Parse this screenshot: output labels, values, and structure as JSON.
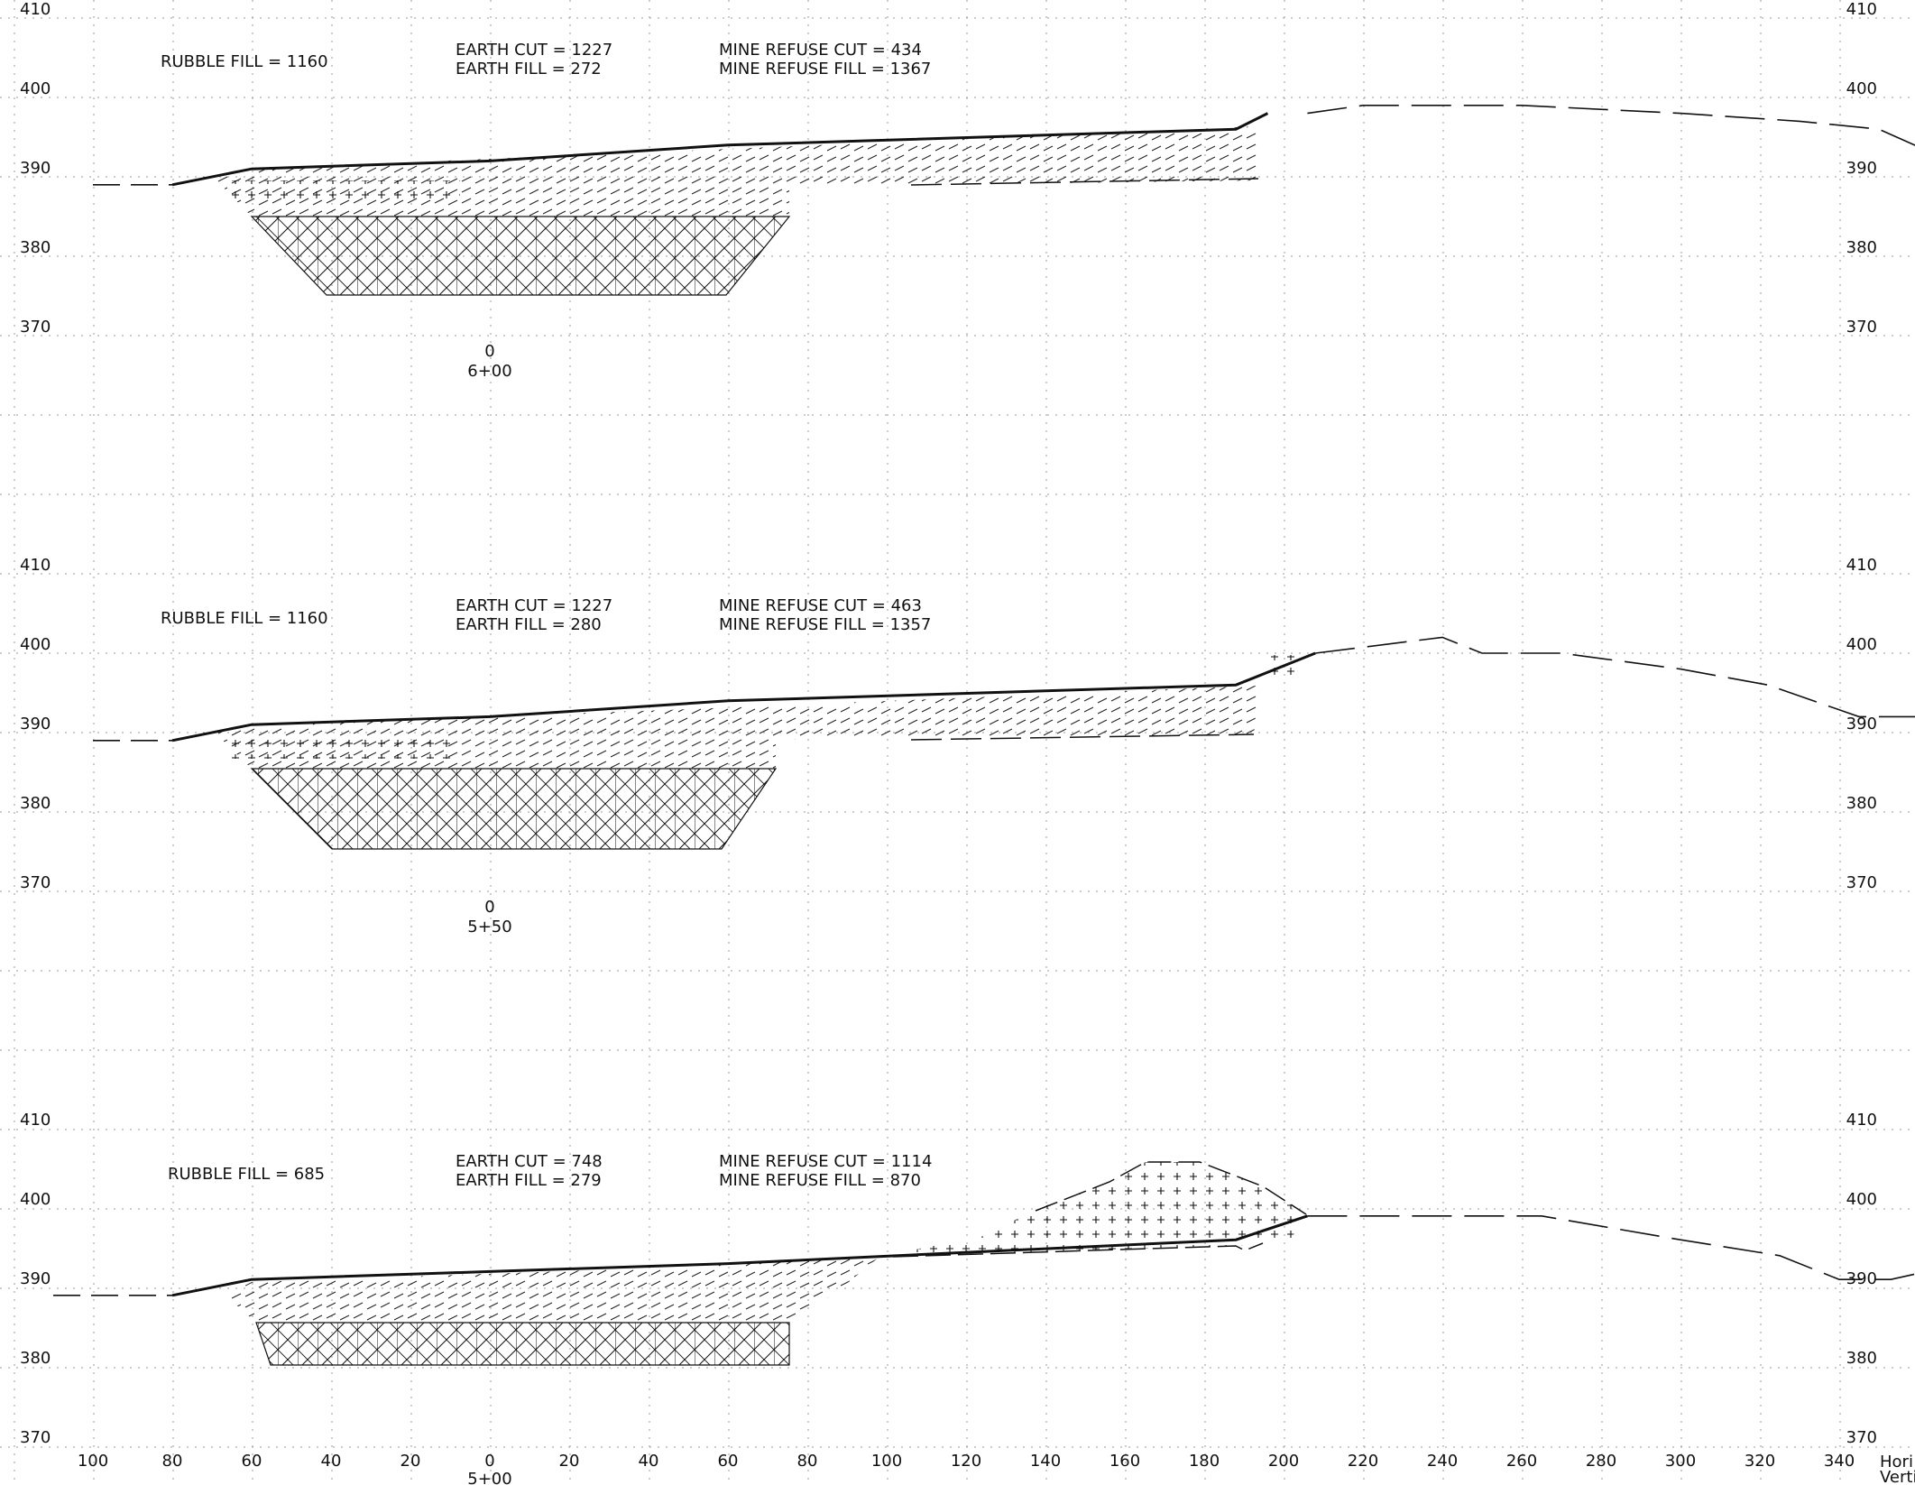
{
  "colors": {
    "ink": "#111111",
    "grid": "#9a9a9a",
    "background": "#ffffff"
  },
  "elevation_ticks": [
    "410",
    "400",
    "390",
    "380",
    "370"
  ],
  "offset_ticks": [
    "100",
    "80",
    "60",
    "40",
    "20",
    "0",
    "20",
    "40",
    "60",
    "80",
    "100",
    "120",
    "140",
    "160",
    "180",
    "200",
    "220",
    "240",
    "260",
    "280",
    "300",
    "320",
    "340"
  ],
  "scale_note": {
    "line1": "Hori",
    "line2": "Verti"
  },
  "sections": [
    {
      "station": "6+00",
      "centerline": "0",
      "rubble_fill": "RUBBLE FILL = 1160",
      "earth_cut": "EARTH CUT = 1227",
      "earth_fill": "EARTH FILL = 272",
      "mine_refuse_cut": "MINE REFUSE CUT = 434",
      "mine_refuse_fill": "MINE REFUSE FILL = 1367",
      "existing_ground": [
        [
          -100,
          389
        ],
        [
          -80,
          389
        ]
      ],
      "existing_ground_right": [
        [
          206,
          398
        ],
        [
          220,
          399
        ],
        [
          260,
          399
        ],
        [
          300,
          398
        ],
        [
          330,
          397
        ],
        [
          350,
          396
        ],
        [
          368,
          392
        ]
      ],
      "proposed_surface": [
        [
          -80,
          389
        ],
        [
          -60,
          391
        ],
        [
          0,
          392
        ],
        [
          60,
          394
        ],
        [
          188,
          396
        ],
        [
          196,
          398
        ]
      ]
    },
    {
      "station": "5+50",
      "centerline": "0",
      "rubble_fill": "RUBBLE FILL = 1160",
      "earth_cut": "EARTH CUT = 1227",
      "earth_fill": "EARTH FILL = 280",
      "mine_refuse_cut": "MINE REFUSE CUT = 463",
      "mine_refuse_fill": "MINE REFUSE FILL = 1357",
      "existing_ground": [
        [
          -100,
          389
        ],
        [
          -80,
          389
        ]
      ],
      "existing_ground_right": [
        [
          208,
          400
        ],
        [
          240,
          402
        ],
        [
          250,
          400
        ],
        [
          270,
          400
        ],
        [
          300,
          398
        ],
        [
          322,
          396
        ],
        [
          345,
          392
        ],
        [
          362,
          392
        ],
        [
          370,
          393
        ]
      ],
      "proposed_surface": [
        [
          -80,
          389
        ],
        [
          -60,
          391
        ],
        [
          0,
          392
        ],
        [
          60,
          394
        ],
        [
          188,
          396
        ],
        [
          208,
          400
        ]
      ]
    },
    {
      "station": "5+00",
      "centerline": "0",
      "rubble_fill": "RUBBLE FILL = 685",
      "earth_cut": "EARTH CUT = 748",
      "earth_fill": "EARTH FILL = 279",
      "mine_refuse_cut": "MINE REFUSE CUT = 1114",
      "mine_refuse_fill": "MINE REFUSE FILL = 870",
      "existing_ground": [
        [
          -110,
          389
        ],
        [
          -80,
          389
        ]
      ],
      "existing_ground_right": [
        [
          206,
          399
        ],
        [
          265,
          399
        ],
        [
          300,
          396
        ],
        [
          325,
          394
        ],
        [
          340,
          391
        ],
        [
          353,
          391
        ],
        [
          362,
          392
        ],
        [
          372,
          390
        ]
      ],
      "proposed_surface": [
        [
          -80,
          389
        ],
        [
          -60,
          391
        ],
        [
          0,
          392
        ],
        [
          60,
          393
        ],
        [
          188,
          396
        ],
        [
          206,
          399
        ]
      ]
    }
  ]
}
